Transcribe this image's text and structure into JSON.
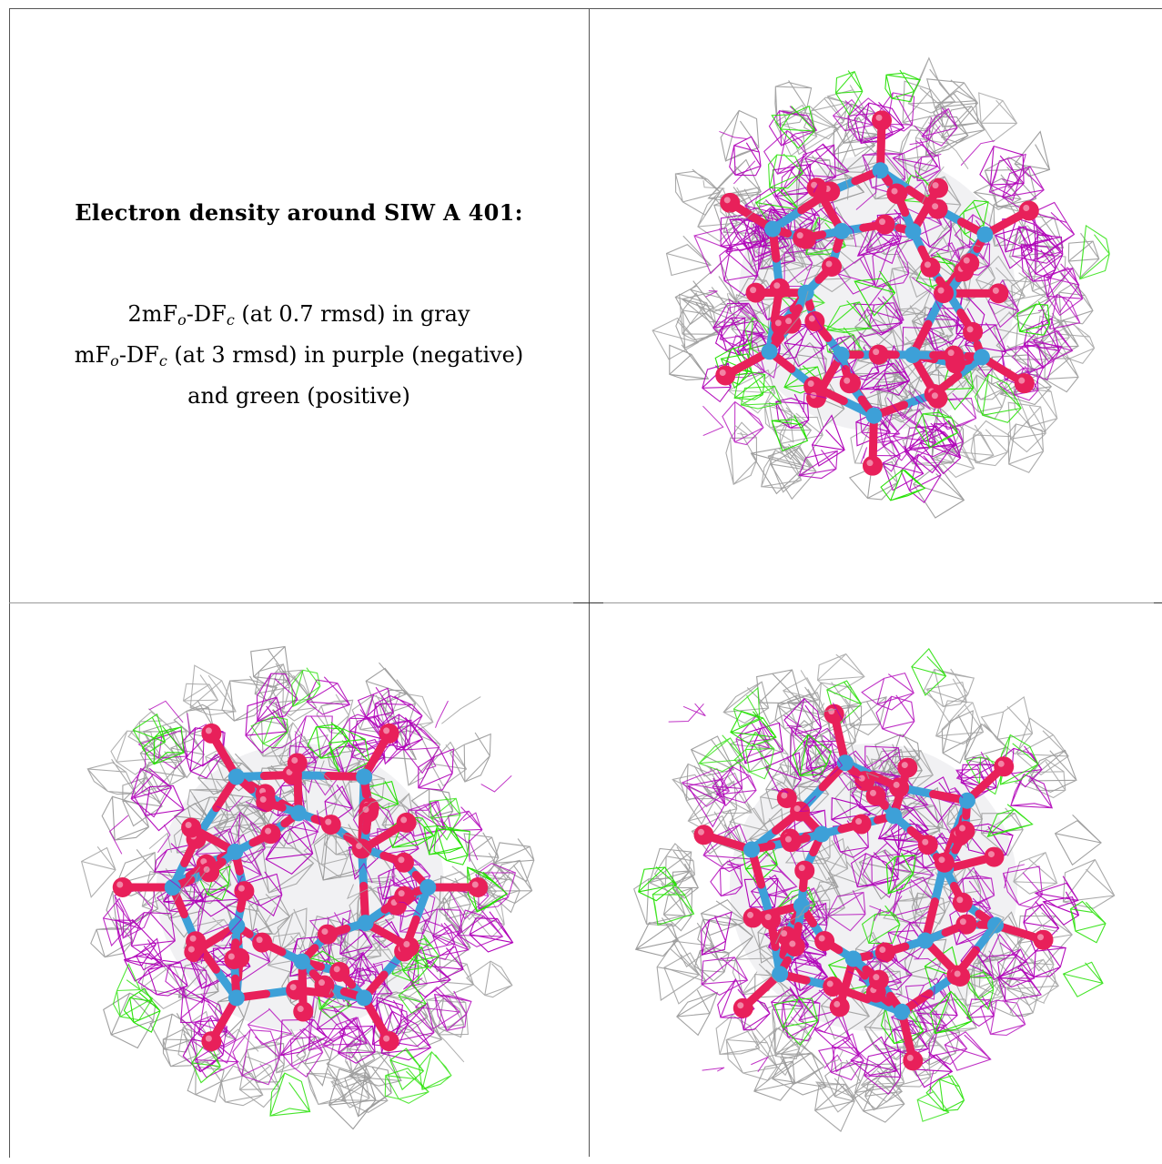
{
  "title": "Electron density around SIW A 401:",
  "line1": {
    "a": "2mF",
    "s1": "o",
    "b": "-DF",
    "s2": "c",
    "c": " (at 0.7 rmsd) in gray"
  },
  "line2": {
    "a": "mF",
    "s1": "o",
    "b": "-DF",
    "s2": "c",
    "c": " (at 3 rmsd) in purple (negative)"
  },
  "line3": "and green (positive)",
  "colors": {
    "gray_mesh": "#9c9c9c",
    "purple_mesh": "#b000b8",
    "green_mesh": "#22e000",
    "oxygen": "#e8205a",
    "tungsten": "#3da0d8"
  },
  "views": [
    "view-top-right",
    "view-bottom-left",
    "view-bottom-right"
  ]
}
